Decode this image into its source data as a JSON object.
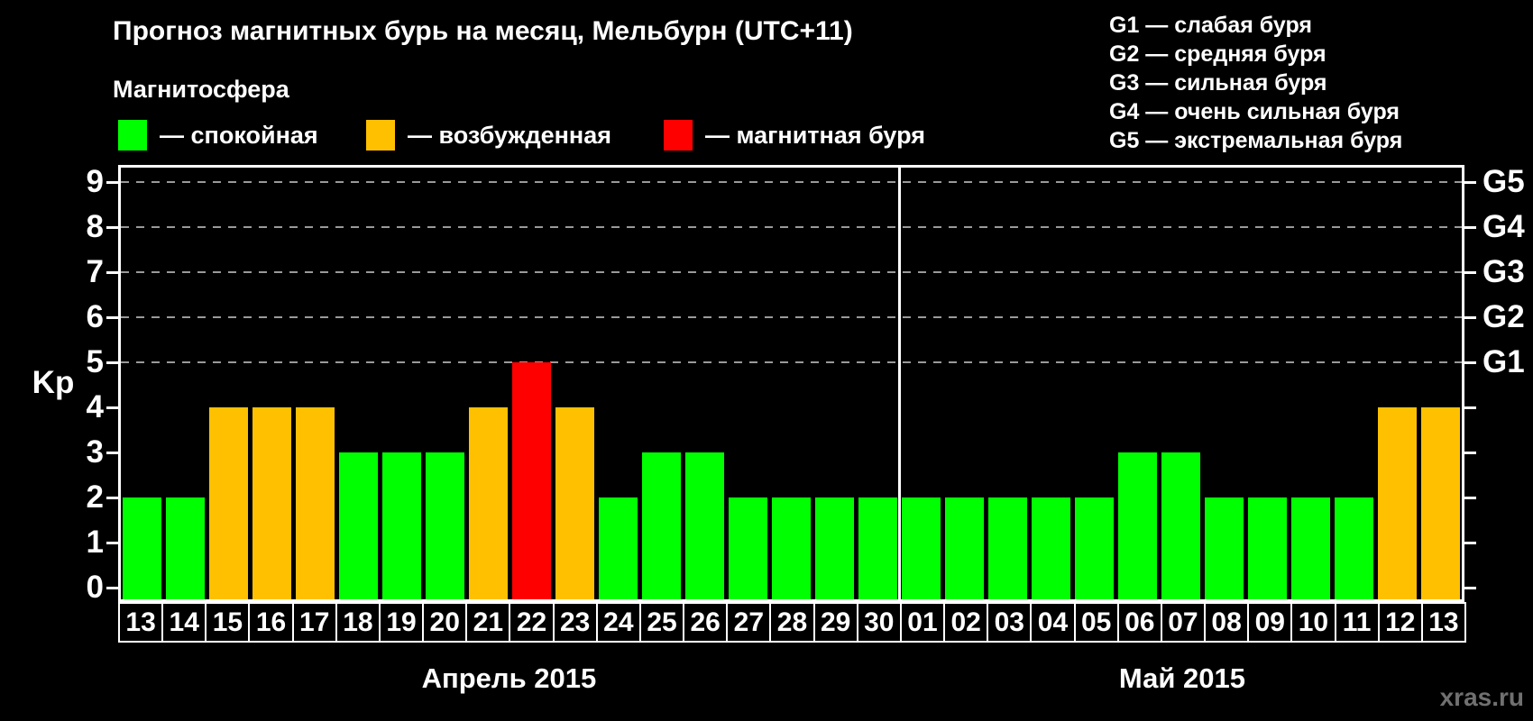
{
  "title": "Прогноз магнитных бурь на месяц, Мельбурн (UTC+11)",
  "subtitle": "Магнитосфера",
  "legend": {
    "items": [
      {
        "key": "quiet",
        "color": "#00ff00",
        "label": "— спокойная"
      },
      {
        "key": "excited",
        "color": "#ffc000",
        "label": "— возбужденная"
      },
      {
        "key": "storm",
        "color": "#ff0000",
        "label": "— магнитная буря"
      }
    ]
  },
  "g_legend": [
    "G1 — слабая буря",
    "G2 — средняя буря",
    "G3 — сильная буря",
    "G4 — очень сильная буря",
    "G5 — экстремальная буря"
  ],
  "watermark": "xras.ru",
  "chart_data": {
    "type": "bar",
    "title": "Прогноз магнитных бурь на месяц, Мельбурн (UTC+11)",
    "ylabel": "Kp",
    "ylim": [
      0,
      9.4
    ],
    "yticks": [
      0,
      1,
      2,
      3,
      4,
      5,
      6,
      7,
      8,
      9
    ],
    "grid_kp_levels": [
      5,
      6,
      7,
      8,
      9
    ],
    "grid_on": true,
    "legend_position": "top-left",
    "right_axis": [
      {
        "kp": 5,
        "label": "G1"
      },
      {
        "kp": 6,
        "label": "G2"
      },
      {
        "kp": 7,
        "label": "G3"
      },
      {
        "kp": 8,
        "label": "G4"
      },
      {
        "kp": 9,
        "label": "G5"
      }
    ],
    "status_colors": {
      "quiet": "#00ff00",
      "excited": "#ffc000",
      "storm": "#ff0000"
    },
    "months": [
      {
        "label": "Апрель 2015",
        "days": [
          {
            "day": "13",
            "kp": 2,
            "status": "quiet"
          },
          {
            "day": "14",
            "kp": 2,
            "status": "quiet"
          },
          {
            "day": "15",
            "kp": 4,
            "status": "excited"
          },
          {
            "day": "16",
            "kp": 4,
            "status": "excited"
          },
          {
            "day": "17",
            "kp": 4,
            "status": "excited"
          },
          {
            "day": "18",
            "kp": 3,
            "status": "quiet"
          },
          {
            "day": "19",
            "kp": 3,
            "status": "quiet"
          },
          {
            "day": "20",
            "kp": 3,
            "status": "quiet"
          },
          {
            "day": "21",
            "kp": 4,
            "status": "excited"
          },
          {
            "day": "22",
            "kp": 5,
            "status": "storm"
          },
          {
            "day": "23",
            "kp": 4,
            "status": "excited"
          },
          {
            "day": "24",
            "kp": 2,
            "status": "quiet"
          },
          {
            "day": "25",
            "kp": 3,
            "status": "quiet"
          },
          {
            "day": "26",
            "kp": 3,
            "status": "quiet"
          },
          {
            "day": "27",
            "kp": 2,
            "status": "quiet"
          },
          {
            "day": "28",
            "kp": 2,
            "status": "quiet"
          },
          {
            "day": "29",
            "kp": 2,
            "status": "quiet"
          },
          {
            "day": "30",
            "kp": 2,
            "status": "quiet"
          }
        ]
      },
      {
        "label": "Май 2015",
        "days": [
          {
            "day": "01",
            "kp": 2,
            "status": "quiet"
          },
          {
            "day": "02",
            "kp": 2,
            "status": "quiet"
          },
          {
            "day": "03",
            "kp": 2,
            "status": "quiet"
          },
          {
            "day": "04",
            "kp": 2,
            "status": "quiet"
          },
          {
            "day": "05",
            "kp": 2,
            "status": "quiet"
          },
          {
            "day": "06",
            "kp": 3,
            "status": "quiet"
          },
          {
            "day": "07",
            "kp": 3,
            "status": "quiet"
          },
          {
            "day": "08",
            "kp": 2,
            "status": "quiet"
          },
          {
            "day": "09",
            "kp": 2,
            "status": "quiet"
          },
          {
            "day": "10",
            "kp": 2,
            "status": "quiet"
          },
          {
            "day": "11",
            "kp": 2,
            "status": "quiet"
          },
          {
            "day": "12",
            "kp": 4,
            "status": "excited"
          },
          {
            "day": "13",
            "kp": 4,
            "status": "excited"
          }
        ]
      }
    ]
  }
}
